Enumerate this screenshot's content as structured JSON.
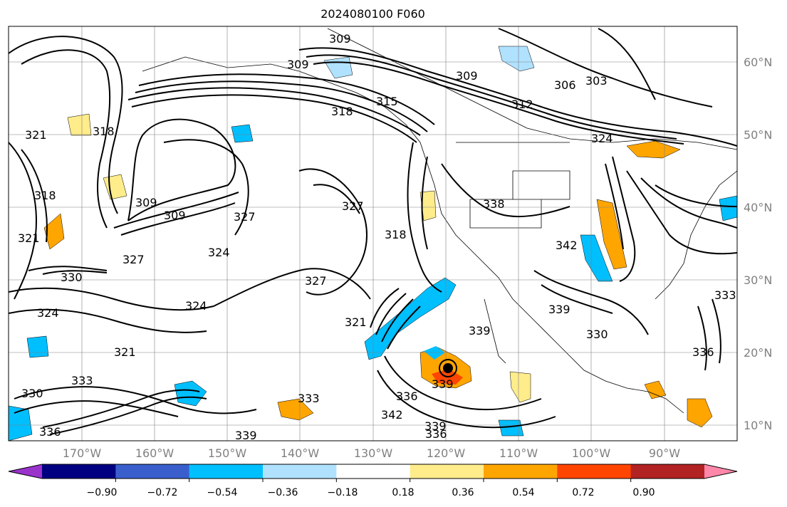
{
  "title": "2024080100 F060",
  "lat_labels": [
    "60°N",
    "50°N",
    "40°N",
    "30°N",
    "20°N",
    "10°N"
  ],
  "lon_labels": [
    "170°W",
    "160°W",
    "150°W",
    "140°W",
    "130°W",
    "120°W",
    "110°W",
    "100°W",
    "90°W"
  ],
  "contour_labels": [
    "309",
    "309",
    "309",
    "309",
    "309",
    "303",
    "306",
    "312",
    "315",
    "318",
    "318",
    "318",
    "318",
    "321",
    "321",
    "321",
    "321",
    "324",
    "324",
    "324",
    "324",
    "327",
    "327",
    "327",
    "327",
    "330",
    "330",
    "330",
    "333",
    "333",
    "333",
    "336",
    "336",
    "336",
    "336",
    "338",
    "339",
    "339",
    "339",
    "339",
    "339",
    "342",
    "342"
  ],
  "colorbar": {
    "ticks": [
      "−0.90",
      "−0.72",
      "−0.54",
      "−0.36",
      "−0.18",
      "0.18",
      "0.36",
      "0.54",
      "0.72",
      "0.90"
    ],
    "colors": [
      "#9933cc",
      "#000080",
      "#3a5fcd",
      "#00bfff",
      "#b0e2ff",
      "#ffffff",
      "#ffec8b",
      "#ffa500",
      "#ff4500",
      "#b22222",
      "#ff88aa"
    ]
  }
}
